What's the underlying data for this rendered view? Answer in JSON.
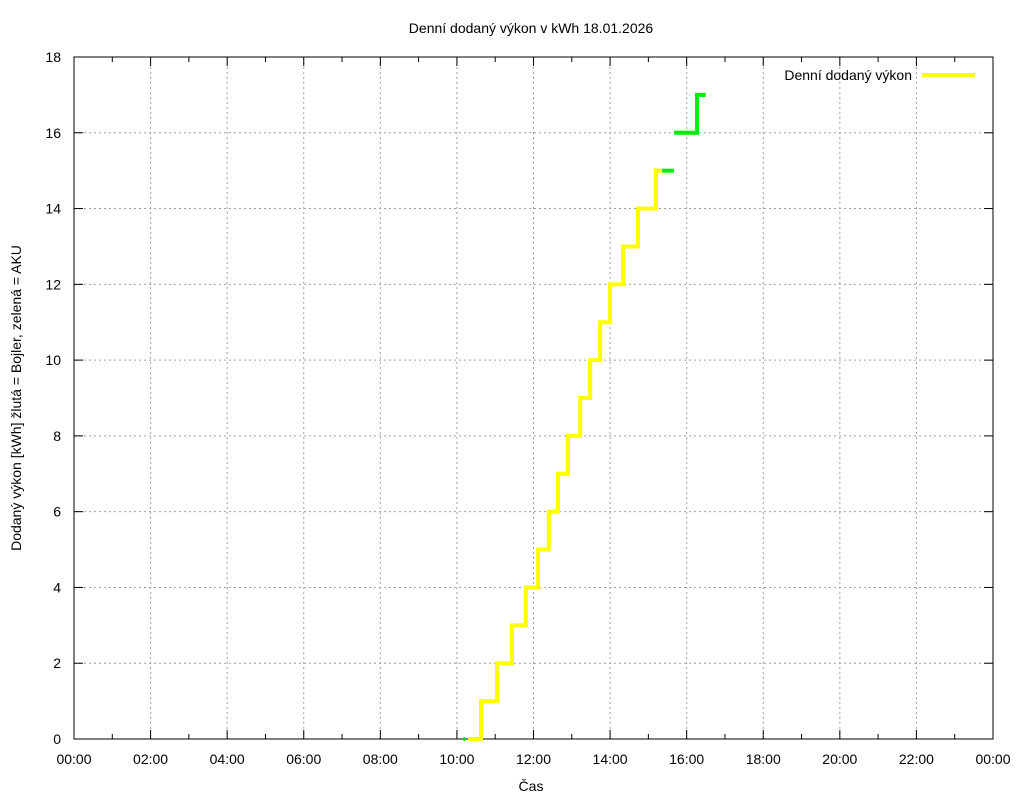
{
  "chart_data": {
    "type": "line",
    "title": "Denní dodaný výkon v kWh 18.01.2026",
    "xlabel": "Čas",
    "ylabel": "Dodaný výkon [kWh]  žlutá = Bojler, zelená = AKU",
    "xlim": [
      0,
      24
    ],
    "ylim": [
      0,
      18
    ],
    "x_ticks": [
      "00:00",
      "02:00",
      "04:00",
      "06:00",
      "08:00",
      "10:00",
      "12:00",
      "14:00",
      "16:00",
      "18:00",
      "20:00",
      "22:00",
      "00:00"
    ],
    "y_ticks": [
      0,
      2,
      4,
      6,
      8,
      10,
      12,
      14,
      16,
      18
    ],
    "grid": true,
    "legend": {
      "position": "top-right",
      "entries": [
        {
          "label": "Denní dodaný výkon",
          "color": "#ffff00"
        }
      ]
    },
    "series": [
      {
        "name": "Bojler",
        "color": "#ffff00",
        "step": true,
        "points": [
          [
            10.29,
            0
          ],
          [
            10.63,
            0
          ],
          [
            10.63,
            1
          ],
          [
            11.05,
            1
          ],
          [
            11.05,
            2
          ],
          [
            11.44,
            2
          ],
          [
            11.44,
            3
          ],
          [
            11.8,
            3
          ],
          [
            11.8,
            4
          ],
          [
            12.12,
            4
          ],
          [
            12.12,
            5
          ],
          [
            12.4,
            5
          ],
          [
            12.4,
            6
          ],
          [
            12.64,
            6
          ],
          [
            12.64,
            7
          ],
          [
            12.9,
            7
          ],
          [
            12.9,
            8
          ],
          [
            13.22,
            8
          ],
          [
            13.22,
            9
          ],
          [
            13.48,
            9
          ],
          [
            13.48,
            10
          ],
          [
            13.74,
            10
          ],
          [
            13.74,
            11
          ],
          [
            14.0,
            11
          ],
          [
            14.0,
            12
          ],
          [
            14.34,
            12
          ],
          [
            14.34,
            13
          ],
          [
            14.73,
            13
          ],
          [
            14.73,
            14
          ],
          [
            15.2,
            14
          ],
          [
            15.2,
            15
          ],
          [
            15.36,
            15
          ]
        ]
      },
      {
        "name": "AKU",
        "color": "#00ee00",
        "step": true,
        "segments": [
          [
            [
              10.17,
              0
            ],
            [
              10.22,
              0
            ]
          ],
          [
            [
              15.36,
              15
            ],
            [
              15.67,
              15
            ]
          ],
          [
            [
              15.67,
              16
            ],
            [
              16.27,
              16
            ],
            [
              16.27,
              17
            ],
            [
              16.5,
              17
            ]
          ]
        ]
      }
    ]
  }
}
